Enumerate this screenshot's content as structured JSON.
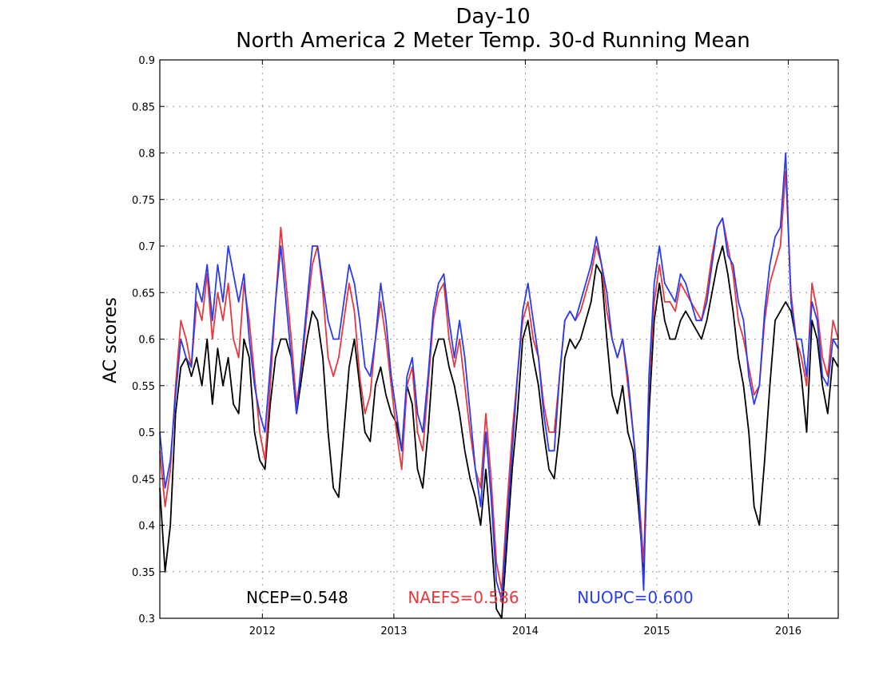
{
  "chart_data": {
    "type": "line",
    "title": "Day-10",
    "subtitle": "North America 2 Meter Temp. 30-d Running Mean",
    "xlabel": "",
    "ylabel": "AC scores",
    "xlim": [
      2011.22,
      2016.38
    ],
    "ylim": [
      0.3,
      0.9
    ],
    "yticks": [
      0.3,
      0.35,
      0.4,
      0.45,
      0.5,
      0.55,
      0.6,
      0.65,
      0.7,
      0.75,
      0.8,
      0.85,
      0.9
    ],
    "ytick_labels": [
      "0.3",
      "0.35",
      "0.4",
      "0.45",
      "0.5",
      "0.55",
      "0.6",
      "0.65",
      "0.7",
      "0.75",
      "0.8",
      "0.85",
      "0.9"
    ],
    "xticks": [
      2012,
      2013,
      2014,
      2015,
      2016
    ],
    "xtick_labels": [
      "2012",
      "2013",
      "2014",
      "2015",
      "2016"
    ],
    "grid": true,
    "series": [
      {
        "name": "NCEP",
        "legend_label": "NCEP=0.548",
        "color": "#000000",
        "x": [
          2011.22,
          2011.26,
          2011.3,
          2011.34,
          2011.38,
          2011.42,
          2011.46,
          2011.5,
          2011.54,
          2011.58,
          2011.62,
          2011.66,
          2011.7,
          2011.74,
          2011.78,
          2011.82,
          2011.86,
          2011.9,
          2011.94,
          2011.98,
          2012.02,
          2012.06,
          2012.1,
          2012.14,
          2012.18,
          2012.22,
          2012.26,
          2012.3,
          2012.34,
          2012.38,
          2012.42,
          2012.46,
          2012.5,
          2012.54,
          2012.58,
          2012.62,
          2012.66,
          2012.7,
          2012.74,
          2012.78,
          2012.82,
          2012.86,
          2012.9,
          2012.94,
          2012.98,
          2013.02,
          2013.06,
          2013.1,
          2013.14,
          2013.18,
          2013.22,
          2013.26,
          2013.3,
          2013.34,
          2013.38,
          2013.42,
          2013.46,
          2013.5,
          2013.54,
          2013.58,
          2013.62,
          2013.66,
          2013.7,
          2013.74,
          2013.78,
          2013.82,
          2013.86,
          2013.9,
          2013.94,
          2013.98,
          2014.02,
          2014.06,
          2014.1,
          2014.14,
          2014.18,
          2014.22,
          2014.26,
          2014.3,
          2014.34,
          2014.38,
          2014.42,
          2014.46,
          2014.5,
          2014.54,
          2014.58,
          2014.62,
          2014.66,
          2014.7,
          2014.74,
          2014.78,
          2014.82,
          2014.86,
          2014.9,
          2014.94,
          2014.98,
          2015.02,
          2015.06,
          2015.1,
          2015.14,
          2015.18,
          2015.22,
          2015.26,
          2015.3,
          2015.34,
          2015.38,
          2015.42,
          2015.46,
          2015.5,
          2015.54,
          2015.58,
          2015.62,
          2015.66,
          2015.7,
          2015.74,
          2015.78,
          2015.82,
          2015.86,
          2015.9,
          2015.94,
          2015.98,
          2016.02,
          2016.06,
          2016.1,
          2016.14,
          2016.18,
          2016.22,
          2016.26,
          2016.3,
          2016.34,
          2016.38
        ],
        "y": [
          0.44,
          0.35,
          0.4,
          0.52,
          0.57,
          0.58,
          0.56,
          0.58,
          0.55,
          0.6,
          0.53,
          0.59,
          0.55,
          0.58,
          0.53,
          0.52,
          0.6,
          0.58,
          0.5,
          0.47,
          0.46,
          0.53,
          0.58,
          0.6,
          0.6,
          0.58,
          0.52,
          0.56,
          0.6,
          0.63,
          0.62,
          0.58,
          0.5,
          0.44,
          0.43,
          0.5,
          0.57,
          0.6,
          0.55,
          0.5,
          0.49,
          0.55,
          0.57,
          0.54,
          0.52,
          0.51,
          0.48,
          0.55,
          0.53,
          0.46,
          0.44,
          0.5,
          0.58,
          0.6,
          0.6,
          0.57,
          0.55,
          0.52,
          0.48,
          0.45,
          0.43,
          0.4,
          0.46,
          0.39,
          0.31,
          0.3,
          0.38,
          0.46,
          0.52,
          0.6,
          0.62,
          0.58,
          0.55,
          0.5,
          0.46,
          0.45,
          0.5,
          0.58,
          0.6,
          0.59,
          0.6,
          0.62,
          0.64,
          0.68,
          0.67,
          0.6,
          0.54,
          0.52,
          0.55,
          0.5,
          0.48,
          0.42,
          0.35,
          0.52,
          0.62,
          0.66,
          0.62,
          0.6,
          0.6,
          0.62,
          0.63,
          0.62,
          0.61,
          0.6,
          0.62,
          0.65,
          0.68,
          0.7,
          0.67,
          0.63,
          0.58,
          0.55,
          0.5,
          0.42,
          0.4,
          0.47,
          0.55,
          0.62,
          0.63,
          0.64,
          0.63,
          0.6,
          0.56,
          0.5,
          0.62,
          0.6,
          0.55,
          0.52,
          0.58,
          0.57
        ]
      },
      {
        "name": "NAEFS",
        "legend_label": "NAEFS=0.586",
        "color": "#e8383d",
        "x": [
          2011.22,
          2011.26,
          2011.3,
          2011.34,
          2011.38,
          2011.42,
          2011.46,
          2011.5,
          2011.54,
          2011.58,
          2011.62,
          2011.66,
          2011.7,
          2011.74,
          2011.78,
          2011.82,
          2011.86,
          2011.9,
          2011.94,
          2011.98,
          2012.02,
          2012.06,
          2012.1,
          2012.14,
          2012.18,
          2012.22,
          2012.26,
          2012.3,
          2012.34,
          2012.38,
          2012.42,
          2012.46,
          2012.5,
          2012.54,
          2012.58,
          2012.62,
          2012.66,
          2012.7,
          2012.74,
          2012.78,
          2012.82,
          2012.86,
          2012.9,
          2012.94,
          2012.98,
          2013.02,
          2013.06,
          2013.1,
          2013.14,
          2013.18,
          2013.22,
          2013.26,
          2013.3,
          2013.34,
          2013.38,
          2013.42,
          2013.46,
          2013.5,
          2013.54,
          2013.58,
          2013.62,
          2013.66,
          2013.7,
          2013.74,
          2013.78,
          2013.82,
          2013.86,
          2013.9,
          2013.94,
          2013.98,
          2014.02,
          2014.06,
          2014.1,
          2014.14,
          2014.18,
          2014.22,
          2014.26,
          2014.3,
          2014.34,
          2014.38,
          2014.42,
          2014.46,
          2014.5,
          2014.54,
          2014.58,
          2014.62,
          2014.66,
          2014.7,
          2014.74,
          2014.78,
          2014.82,
          2014.86,
          2014.9,
          2014.94,
          2014.98,
          2015.02,
          2015.06,
          2015.1,
          2015.14,
          2015.18,
          2015.22,
          2015.26,
          2015.3,
          2015.34,
          2015.38,
          2015.42,
          2015.46,
          2015.5,
          2015.54,
          2015.58,
          2015.62,
          2015.66,
          2015.7,
          2015.74,
          2015.78,
          2015.82,
          2015.86,
          2015.9,
          2015.94,
          2015.98,
          2016.02,
          2016.06,
          2016.1,
          2016.14,
          2016.18,
          2016.22,
          2016.26,
          2016.3,
          2016.34,
          2016.38
        ],
        "y": [
          0.48,
          0.42,
          0.46,
          0.55,
          0.62,
          0.6,
          0.57,
          0.64,
          0.62,
          0.67,
          0.6,
          0.65,
          0.62,
          0.66,
          0.6,
          0.58,
          0.66,
          0.62,
          0.56,
          0.5,
          0.47,
          0.55,
          0.64,
          0.72,
          0.66,
          0.6,
          0.53,
          0.57,
          0.63,
          0.68,
          0.7,
          0.65,
          0.58,
          0.56,
          0.58,
          0.62,
          0.66,
          0.63,
          0.56,
          0.52,
          0.54,
          0.6,
          0.64,
          0.6,
          0.55,
          0.5,
          0.46,
          0.55,
          0.57,
          0.5,
          0.48,
          0.55,
          0.62,
          0.65,
          0.66,
          0.6,
          0.57,
          0.6,
          0.55,
          0.5,
          0.46,
          0.44,
          0.52,
          0.45,
          0.36,
          0.33,
          0.42,
          0.5,
          0.56,
          0.62,
          0.64,
          0.6,
          0.58,
          0.53,
          0.5,
          0.5,
          0.56,
          0.62,
          0.63,
          0.62,
          0.63,
          0.65,
          0.67,
          0.7,
          0.68,
          0.63,
          0.6,
          0.58,
          0.6,
          0.55,
          0.5,
          0.44,
          0.36,
          0.55,
          0.64,
          0.68,
          0.64,
          0.64,
          0.63,
          0.66,
          0.65,
          0.64,
          0.63,
          0.62,
          0.65,
          0.69,
          0.72,
          0.73,
          0.7,
          0.67,
          0.62,
          0.6,
          0.57,
          0.54,
          0.55,
          0.62,
          0.66,
          0.68,
          0.7,
          0.78,
          0.65,
          0.6,
          0.58,
          0.55,
          0.66,
          0.63,
          0.58,
          0.56,
          0.62,
          0.6
        ]
      },
      {
        "name": "NUOPC",
        "legend_label": "NUOPC=0.600",
        "color": "#2a3cf0",
        "x": [
          2011.22,
          2011.26,
          2011.3,
          2011.34,
          2011.38,
          2011.42,
          2011.46,
          2011.5,
          2011.54,
          2011.58,
          2011.62,
          2011.66,
          2011.7,
          2011.74,
          2011.78,
          2011.82,
          2011.86,
          2011.9,
          2011.94,
          2011.98,
          2012.02,
          2012.06,
          2012.1,
          2012.14,
          2012.18,
          2012.22,
          2012.26,
          2012.3,
          2012.34,
          2012.38,
          2012.42,
          2012.46,
          2012.5,
          2012.54,
          2012.58,
          2012.62,
          2012.66,
          2012.7,
          2012.74,
          2012.78,
          2012.82,
          2012.86,
          2012.9,
          2012.94,
          2012.98,
          2013.02,
          2013.06,
          2013.1,
          2013.14,
          2013.18,
          2013.22,
          2013.26,
          2013.3,
          2013.34,
          2013.38,
          2013.42,
          2013.46,
          2013.5,
          2013.54,
          2013.58,
          2013.62,
          2013.66,
          2013.7,
          2013.74,
          2013.78,
          2013.82,
          2013.86,
          2013.9,
          2013.94,
          2013.98,
          2014.02,
          2014.06,
          2014.1,
          2014.14,
          2014.18,
          2014.22,
          2014.26,
          2014.3,
          2014.34,
          2014.38,
          2014.42,
          2014.46,
          2014.5,
          2014.54,
          2014.58,
          2014.62,
          2014.66,
          2014.7,
          2014.74,
          2014.78,
          2014.82,
          2014.86,
          2014.9,
          2014.94,
          2014.98,
          2015.02,
          2015.06,
          2015.1,
          2015.14,
          2015.18,
          2015.22,
          2015.26,
          2015.3,
          2015.34,
          2015.38,
          2015.42,
          2015.46,
          2015.5,
          2015.54,
          2015.58,
          2015.62,
          2015.66,
          2015.7,
          2015.74,
          2015.78,
          2015.82,
          2015.86,
          2015.9,
          2015.94,
          2015.98,
          2016.02,
          2016.06,
          2016.1,
          2016.14,
          2016.18,
          2016.22,
          2016.26,
          2016.3,
          2016.34,
          2016.38
        ],
        "y": [
          0.5,
          0.44,
          0.47,
          0.54,
          0.6,
          0.58,
          0.57,
          0.66,
          0.64,
          0.68,
          0.62,
          0.68,
          0.64,
          0.7,
          0.67,
          0.64,
          0.67,
          0.6,
          0.55,
          0.52,
          0.5,
          0.57,
          0.64,
          0.7,
          0.64,
          0.58,
          0.52,
          0.58,
          0.64,
          0.7,
          0.7,
          0.66,
          0.62,
          0.6,
          0.6,
          0.64,
          0.68,
          0.66,
          0.62,
          0.57,
          0.56,
          0.6,
          0.66,
          0.62,
          0.56,
          0.52,
          0.48,
          0.56,
          0.58,
          0.52,
          0.5,
          0.56,
          0.63,
          0.66,
          0.67,
          0.62,
          0.58,
          0.62,
          0.58,
          0.52,
          0.46,
          0.42,
          0.5,
          0.43,
          0.34,
          0.32,
          0.4,
          0.48,
          0.56,
          0.63,
          0.66,
          0.62,
          0.58,
          0.52,
          0.48,
          0.48,
          0.56,
          0.62,
          0.63,
          0.62,
          0.64,
          0.66,
          0.68,
          0.71,
          0.68,
          0.65,
          0.6,
          0.58,
          0.6,
          0.56,
          0.5,
          0.44,
          0.33,
          0.56,
          0.66,
          0.7,
          0.66,
          0.65,
          0.64,
          0.67,
          0.66,
          0.64,
          0.62,
          0.62,
          0.64,
          0.68,
          0.72,
          0.73,
          0.69,
          0.68,
          0.64,
          0.62,
          0.56,
          0.53,
          0.55,
          0.63,
          0.68,
          0.71,
          0.72,
          0.8,
          0.64,
          0.6,
          0.6,
          0.56,
          0.64,
          0.62,
          0.56,
          0.55,
          0.6,
          0.59
        ]
      }
    ]
  }
}
